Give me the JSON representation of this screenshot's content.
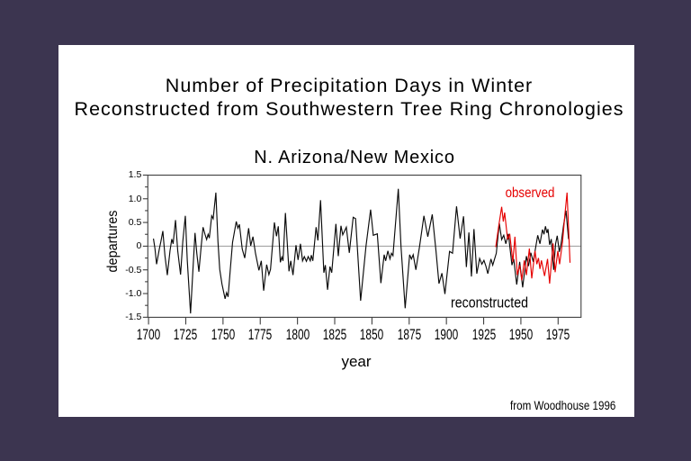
{
  "slide": {
    "title_line1": "Number of Precipitation Days in Winter",
    "title_line2": "Reconstructed from Southwestern Tree Ring Chronologies",
    "subtitle": "N. Arizona/New Mexico",
    "credit": "from Woodhouse 1996",
    "colors": {
      "page_background": "#3c3550",
      "slide_background": "#ffffff",
      "text": "#000000"
    }
  },
  "chart_data": {
    "type": "line",
    "title": "N. Arizona/New Mexico",
    "xlabel": "year",
    "ylabel": "departures",
    "xlim": [
      1699.5,
      1990.5
    ],
    "ylim": [
      -1.5,
      1.5
    ],
    "xticks": [
      1700,
      1725,
      1750,
      1775,
      1800,
      1825,
      1850,
      1875,
      1900,
      1925,
      1950,
      1975
    ],
    "ytick_labels": [
      "1.5",
      "1.0",
      "0.5",
      "0",
      "-0.5",
      "-1.0",
      "-1.5"
    ],
    "yticks": [
      1.5,
      1.0,
      0.5,
      0,
      -0.5,
      -1.0,
      -1.5
    ],
    "y_minor_tick_step": 0.25,
    "grid": false,
    "zero_line": true,
    "legend_position": "annotations-on-plot",
    "axis_color": "#3f3f3f",
    "zero_line_color": "#9a9a9a",
    "series": [
      {
        "name": "reconstructed",
        "color": "#0a0a0a",
        "points": [
          [
            1703.3,
            0.16
          ],
          [
            1704.3,
            -0.05
          ],
          [
            1705.4,
            -0.38
          ],
          [
            1707.3,
            -0.05
          ],
          [
            1708.3,
            0.1
          ],
          [
            1709.6,
            0.32
          ],
          [
            1711.0,
            -0.2
          ],
          [
            1712.6,
            -0.61
          ],
          [
            1714.4,
            -0.1
          ],
          [
            1715.6,
            0.15
          ],
          [
            1716.5,
            0.05
          ],
          [
            1718.1,
            0.55
          ],
          [
            1719.6,
            -0.1
          ],
          [
            1721.5,
            -0.6
          ],
          [
            1723.0,
            0.1
          ],
          [
            1724.7,
            0.64
          ],
          [
            1726.0,
            -0.3
          ],
          [
            1728.2,
            -1.42
          ],
          [
            1729.8,
            -0.5
          ],
          [
            1731.2,
            0.28
          ],
          [
            1732.4,
            -0.15
          ],
          [
            1733.8,
            -0.54
          ],
          [
            1735.2,
            -0.05
          ],
          [
            1736.6,
            0.4
          ],
          [
            1737.9,
            0.25
          ],
          [
            1739.0,
            0.14
          ],
          [
            1740.0,
            0.25
          ],
          [
            1740.8,
            0.17
          ],
          [
            1742.4,
            0.64
          ],
          [
            1743.4,
            0.58
          ],
          [
            1745.2,
            1.13
          ],
          [
            1746.6,
            0.1
          ],
          [
            1747.8,
            -0.49
          ],
          [
            1749.3,
            -0.8
          ],
          [
            1751.4,
            -1.11
          ],
          [
            1752.4,
            -0.98
          ],
          [
            1753.4,
            -1.07
          ],
          [
            1755.0,
            -0.45
          ],
          [
            1756.4,
            0.08
          ],
          [
            1758.9,
            0.52
          ],
          [
            1760.0,
            0.38
          ],
          [
            1761.0,
            0.46
          ],
          [
            1762.9,
            -0.06
          ],
          [
            1764.6,
            -0.25
          ],
          [
            1766.0,
            0.1
          ],
          [
            1767.2,
            0.38
          ],
          [
            1768.6,
            0.01
          ],
          [
            1770.1,
            0.2
          ],
          [
            1771.8,
            -0.15
          ],
          [
            1774.1,
            -0.51
          ],
          [
            1775.7,
            -0.31
          ],
          [
            1777.3,
            -0.94
          ],
          [
            1779.3,
            -0.39
          ],
          [
            1780.8,
            -0.6
          ],
          [
            1781.9,
            -0.49
          ],
          [
            1784.5,
            0.5
          ],
          [
            1785.9,
            0.21
          ],
          [
            1787.1,
            0.42
          ],
          [
            1788.5,
            -0.34
          ],
          [
            1789.5,
            -0.23
          ],
          [
            1790.3,
            -0.31
          ],
          [
            1791.9,
            0.7
          ],
          [
            1794.3,
            -0.53
          ],
          [
            1795.5,
            -0.31
          ],
          [
            1797.0,
            -0.61
          ],
          [
            1799.0,
            0.02
          ],
          [
            1800.4,
            -0.29
          ],
          [
            1802.0,
            0.05
          ],
          [
            1803.4,
            -0.31
          ],
          [
            1804.6,
            -0.22
          ],
          [
            1806.0,
            -0.32
          ],
          [
            1807.2,
            -0.22
          ],
          [
            1808.6,
            -0.31
          ],
          [
            1809.3,
            -0.19
          ],
          [
            1810.3,
            -0.31
          ],
          [
            1812.5,
            0.4
          ],
          [
            1813.7,
            0.12
          ],
          [
            1815.5,
            0.97
          ],
          [
            1817.7,
            -0.56
          ],
          [
            1818.7,
            -0.4
          ],
          [
            1820.2,
            -0.92
          ],
          [
            1821.8,
            -0.43
          ],
          [
            1823.0,
            -0.56
          ],
          [
            1825.8,
            0.47
          ],
          [
            1827.4,
            -0.21
          ],
          [
            1829.2,
            0.43
          ],
          [
            1830.4,
            0.24
          ],
          [
            1832.8,
            0.4
          ],
          [
            1834.8,
            -0.14
          ],
          [
            1837.4,
            0.61
          ],
          [
            1839.0,
            0.58
          ],
          [
            1842.4,
            -1.15
          ],
          [
            1846.0,
            0.0
          ],
          [
            1849.1,
            0.77
          ],
          [
            1850.9,
            0.23
          ],
          [
            1853.6,
            0.26
          ],
          [
            1856.0,
            -0.78
          ],
          [
            1858.2,
            -0.18
          ],
          [
            1859.2,
            -0.31
          ],
          [
            1860.7,
            -0.1
          ],
          [
            1862.1,
            -0.27
          ],
          [
            1863.1,
            -0.15
          ],
          [
            1864.1,
            -0.2
          ],
          [
            1867.7,
            1.21
          ],
          [
            1869.5,
            0.0
          ],
          [
            1872.3,
            -1.31
          ],
          [
            1875.3,
            -0.18
          ],
          [
            1876.5,
            -0.27
          ],
          [
            1877.7,
            -0.18
          ],
          [
            1879.5,
            -0.5
          ],
          [
            1882.0,
            0.0
          ],
          [
            1884.9,
            0.64
          ],
          [
            1887.5,
            0.2
          ],
          [
            1890.5,
            0.67
          ],
          [
            1893.0,
            -0.1
          ],
          [
            1895.0,
            -0.79
          ],
          [
            1897.0,
            -0.57
          ],
          [
            1899.0,
            -1.01
          ],
          [
            1902.1,
            -0.11
          ],
          [
            1904.1,
            -0.15
          ],
          [
            1906.8,
            0.84
          ],
          [
            1909.2,
            0.16
          ],
          [
            1911.5,
            0.63
          ],
          [
            1913.4,
            -0.44
          ],
          [
            1915.1,
            0.29
          ],
          [
            1916.8,
            -0.64
          ],
          [
            1918.5,
            0.36
          ],
          [
            1920.4,
            -0.58
          ],
          [
            1922.3,
            -0.26
          ],
          [
            1923.8,
            -0.38
          ],
          [
            1925.2,
            -0.3
          ],
          [
            1926.5,
            -0.42
          ],
          [
            1927.8,
            -0.58
          ],
          [
            1929.9,
            -0.27
          ],
          [
            1931.1,
            -0.4
          ],
          [
            1933.5,
            -0.15
          ],
          [
            1935.5,
            0.48
          ],
          [
            1937.1,
            0.14
          ],
          [
            1938.5,
            0.23
          ],
          [
            1939.9,
            0.05
          ],
          [
            1941.6,
            0.26
          ],
          [
            1944.0,
            -0.4
          ],
          [
            1945.2,
            -0.27
          ],
          [
            1947.2,
            -0.81
          ],
          [
            1949.2,
            -0.33
          ],
          [
            1951.2,
            -0.87
          ],
          [
            1953.7,
            -0.21
          ],
          [
            1955.1,
            -0.42
          ],
          [
            1956.7,
            -0.14
          ],
          [
            1958.3,
            -0.33
          ],
          [
            1961.3,
            0.23
          ],
          [
            1962.8,
            0.05
          ],
          [
            1964.5,
            0.35
          ],
          [
            1965.5,
            0.25
          ],
          [
            1966.5,
            0.42
          ],
          [
            1967.5,
            0.28
          ],
          [
            1968.2,
            0.36
          ],
          [
            1969.3,
            0.03
          ],
          [
            1970.4,
            0.15
          ],
          [
            1972.0,
            -0.5
          ],
          [
            1973.3,
            0.05
          ],
          [
            1974.4,
            0.22
          ],
          [
            1975.8,
            -0.12
          ],
          [
            1977.0,
            0.05
          ],
          [
            1978.7,
            0.45
          ],
          [
            1980.3,
            0.75
          ],
          [
            1982.0,
            0.15
          ]
        ]
      },
      {
        "name": "observed",
        "color": "#e60000",
        "points": [
          [
            1933.1,
            -0.02
          ],
          [
            1935.0,
            0.4
          ],
          [
            1937.1,
            0.83
          ],
          [
            1938.2,
            0.52
          ],
          [
            1939.1,
            0.71
          ],
          [
            1941.1,
            0.14
          ],
          [
            1942.5,
            0.26
          ],
          [
            1944.6,
            -0.33
          ],
          [
            1946.0,
            0.2
          ],
          [
            1947.6,
            -0.61
          ],
          [
            1949.2,
            -0.4
          ],
          [
            1950.6,
            -0.72
          ],
          [
            1952.3,
            -0.3
          ],
          [
            1953.7,
            -0.61
          ],
          [
            1955.7,
            -0.05
          ],
          [
            1957.3,
            -0.68
          ],
          [
            1959.5,
            -0.1
          ],
          [
            1960.7,
            -0.38
          ],
          [
            1961.8,
            -0.25
          ],
          [
            1962.8,
            -0.48
          ],
          [
            1963.8,
            -0.3
          ],
          [
            1965.9,
            -0.63
          ],
          [
            1967.9,
            -0.27
          ],
          [
            1969.3,
            -0.79
          ],
          [
            1971.6,
            0.06
          ],
          [
            1973.0,
            -0.55
          ],
          [
            1974.8,
            -0.1
          ],
          [
            1976.0,
            -0.38
          ],
          [
            1978.0,
            0.1
          ],
          [
            1979.5,
            0.65
          ],
          [
            1981.0,
            1.13
          ],
          [
            1983.0,
            -0.35
          ]
        ]
      }
    ]
  }
}
